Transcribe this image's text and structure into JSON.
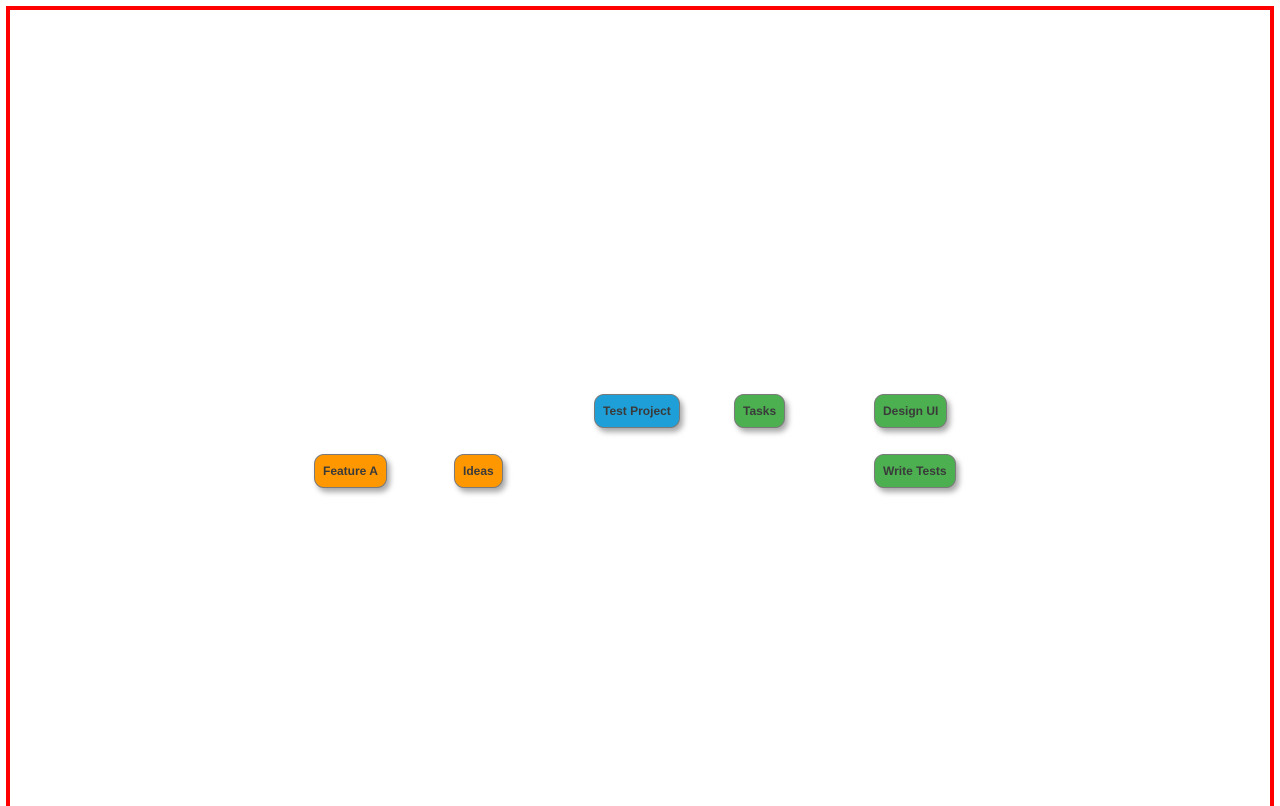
{
  "mindmap": {
    "nodes": {
      "root": {
        "label": "Test Project",
        "color": "#1e9fd8"
      },
      "tasks": {
        "label": "Tasks",
        "color": "#4caf50"
      },
      "design_ui": {
        "label": "Design UI",
        "color": "#4caf50"
      },
      "write_tests": {
        "label": "Write Tests",
        "color": "#4caf50"
      },
      "ideas": {
        "label": "Ideas",
        "color": "#ff9800"
      },
      "feature_a": {
        "label": "Feature A",
        "color": "#ff9800"
      }
    },
    "border_color": "#ff0000"
  }
}
